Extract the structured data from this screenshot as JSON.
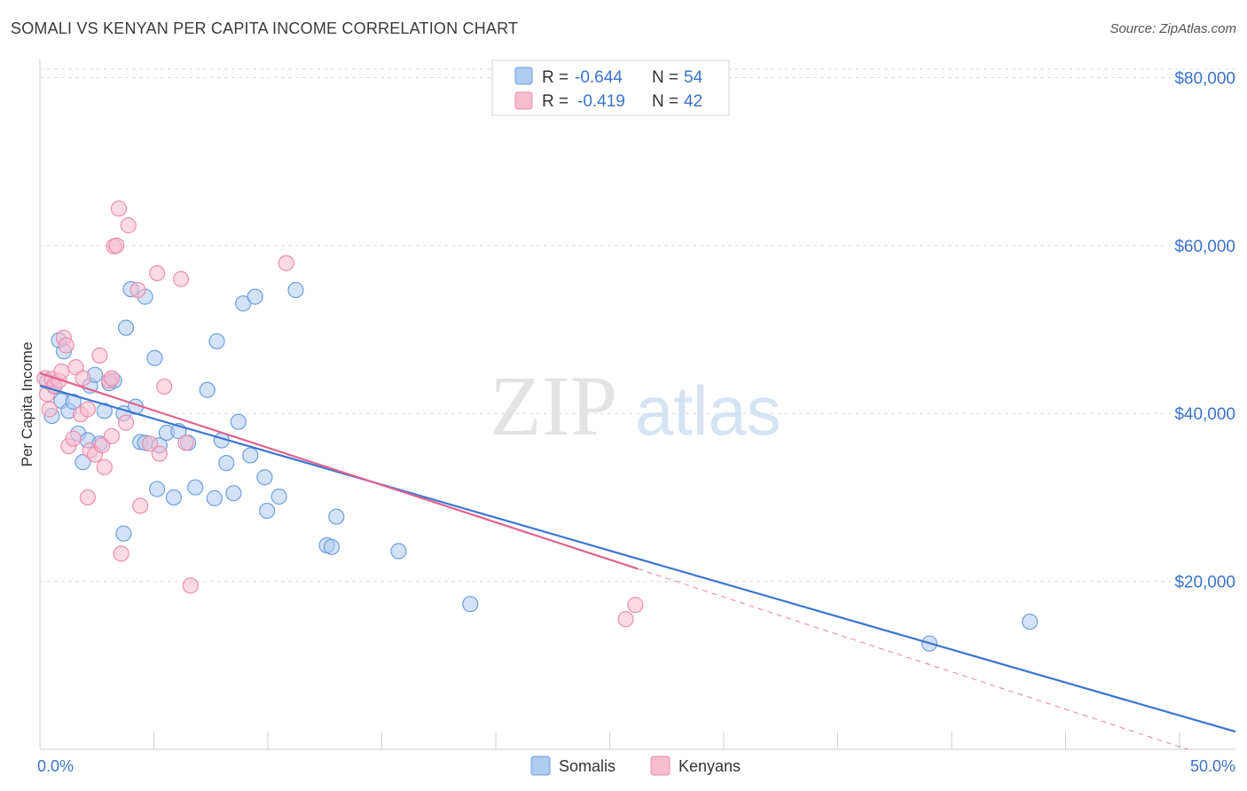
{
  "title": "SOMALI VS KENYAN PER CAPITA INCOME CORRELATION CHART",
  "source": "Source: ZipAtlas.com",
  "watermark": {
    "zip": "ZIP",
    "atlas": "atlas"
  },
  "legend": {
    "rows": [
      {
        "r_label": "R =",
        "r_value": "-0.644",
        "n_label": "N =",
        "n_value": "54"
      },
      {
        "r_label": "R =",
        "r_value": "-0.419",
        "n_label": "N =",
        "n_value": "42"
      }
    ]
  },
  "bottom_legend": [
    "Somalis",
    "Kenyans"
  ],
  "colors": {
    "somali_fill": "#aecbf0",
    "somali_stroke": "#6f9fdc",
    "somali_line": "#3a75d0",
    "kenyan_fill": "#f7bccd",
    "kenyan_stroke": "#e98fae",
    "kenyan_line": "#e0628e",
    "tick_label": "#3b73c8",
    "grid": "#dcdcdc"
  },
  "chart_data": {
    "type": "scatter",
    "title": "SOMALI VS KENYAN PER CAPITA INCOME CORRELATION CHART",
    "xlabel": "",
    "ylabel": "Per Capita Income",
    "xlim": [
      0,
      50
    ],
    "ylim": [
      0,
      81000
    ],
    "x_tick_labels": [
      "0.0%",
      "50.0%"
    ],
    "y_ticks": [
      20000,
      40000,
      60000,
      80000
    ],
    "y_tick_labels": [
      "$20,000",
      "$40,000",
      "$60,000",
      "$80,000"
    ],
    "grid": true,
    "legend_position": "top-center",
    "series": [
      {
        "name": "Somalis",
        "r": -0.644,
        "n": 54,
        "trend": {
          "x0": 0,
          "y0": 43300,
          "x1": 50,
          "y1": 2100
        },
        "points": [
          [
            0.3,
            43800
          ],
          [
            0.5,
            39700
          ],
          [
            0.6,
            43200
          ],
          [
            0.8,
            48700
          ],
          [
            0.9,
            41500
          ],
          [
            1.0,
            47400
          ],
          [
            1.2,
            40300
          ],
          [
            1.4,
            41400
          ],
          [
            1.6,
            37600
          ],
          [
            1.8,
            34200
          ],
          [
            2.0,
            36800
          ],
          [
            2.1,
            43300
          ],
          [
            2.3,
            44600
          ],
          [
            2.5,
            36400
          ],
          [
            2.7,
            40300
          ],
          [
            2.9,
            43600
          ],
          [
            3.1,
            43900
          ],
          [
            3.5,
            40000
          ],
          [
            3.6,
            50200
          ],
          [
            3.8,
            54800
          ],
          [
            4.0,
            40800
          ],
          [
            4.2,
            36600
          ],
          [
            4.4,
            36500
          ],
          [
            4.8,
            46600
          ],
          [
            5.0,
            36200
          ],
          [
            4.4,
            53900
          ],
          [
            4.9,
            31000
          ],
          [
            5.3,
            37700
          ],
          [
            5.6,
            30000
          ],
          [
            5.8,
            37900
          ],
          [
            6.2,
            36500
          ],
          [
            6.5,
            31200
          ],
          [
            7.0,
            42800
          ],
          [
            7.3,
            29900
          ],
          [
            7.4,
            48600
          ],
          [
            7.6,
            36800
          ],
          [
            7.8,
            34100
          ],
          [
            8.1,
            30500
          ],
          [
            8.3,
            39000
          ],
          [
            8.5,
            53100
          ],
          [
            8.8,
            35000
          ],
          [
            9.0,
            53900
          ],
          [
            9.4,
            32400
          ],
          [
            9.5,
            28400
          ],
          [
            10.0,
            30100
          ],
          [
            10.7,
            54700
          ],
          [
            12.0,
            24300
          ],
          [
            12.2,
            24100
          ],
          [
            12.4,
            27700
          ],
          [
            15.0,
            23600
          ],
          [
            18.0,
            17300
          ],
          [
            37.2,
            12600
          ],
          [
            41.4,
            15200
          ],
          [
            3.5,
            25700
          ]
        ]
      },
      {
        "name": "Kenyans",
        "r": -0.419,
        "n": 42,
        "trend": {
          "x0": 0,
          "y0": 44800,
          "x1": 25,
          "y1": 21500
        },
        "trend_dashed": {
          "x0": 25,
          "y0": 21500,
          "x1": 48,
          "y1": 0
        },
        "points": [
          [
            0.2,
            44200
          ],
          [
            0.3,
            42300
          ],
          [
            0.5,
            44100
          ],
          [
            0.6,
            43300
          ],
          [
            0.8,
            43900
          ],
          [
            0.9,
            45000
          ],
          [
            1.0,
            49000
          ],
          [
            1.1,
            48100
          ],
          [
            1.2,
            36100
          ],
          [
            1.4,
            37000
          ],
          [
            1.5,
            45500
          ],
          [
            1.7,
            39900
          ],
          [
            1.8,
            44200
          ],
          [
            2.0,
            40500
          ],
          [
            2.1,
            35600
          ],
          [
            2.0,
            30000
          ],
          [
            2.3,
            35100
          ],
          [
            2.5,
            46900
          ],
          [
            2.6,
            36200
          ],
          [
            2.7,
            33600
          ],
          [
            2.9,
            43900
          ],
          [
            3.0,
            37300
          ],
          [
            3.1,
            59900
          ],
          [
            3.2,
            60000
          ],
          [
            3.3,
            64400
          ],
          [
            3.4,
            23300
          ],
          [
            3.6,
            38900
          ],
          [
            3.7,
            62400
          ],
          [
            4.1,
            54700
          ],
          [
            4.2,
            29000
          ],
          [
            4.6,
            36400
          ],
          [
            4.9,
            56700
          ],
          [
            5.0,
            35200
          ],
          [
            5.2,
            43200
          ],
          [
            5.9,
            56000
          ],
          [
            6.1,
            36500
          ],
          [
            6.3,
            19500
          ],
          [
            10.3,
            57900
          ],
          [
            24.5,
            15500
          ],
          [
            24.9,
            17200
          ],
          [
            0.4,
            40500
          ],
          [
            3.0,
            44200
          ]
        ]
      }
    ]
  }
}
